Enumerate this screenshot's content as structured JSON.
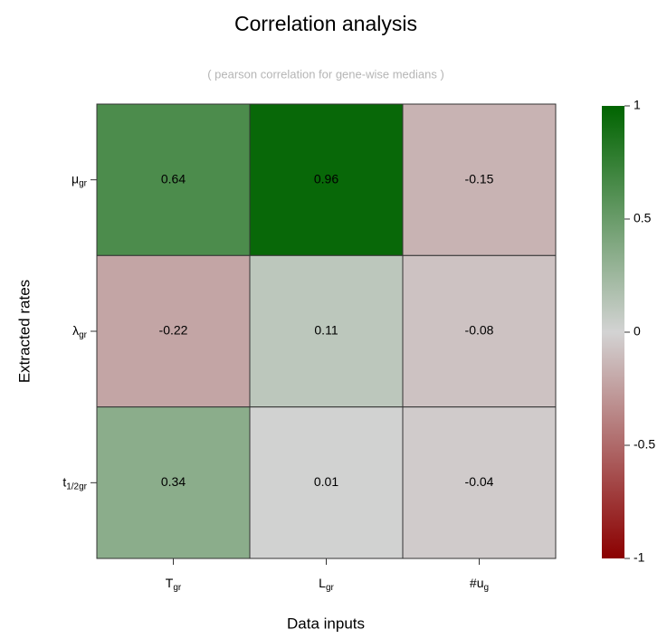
{
  "chart_data": {
    "type": "heatmap",
    "title": "Correlation analysis",
    "subtitle": "( pearson correlation for gene-wise medians )",
    "xlabel": "Data inputs",
    "ylabel": "Extracted rates",
    "x_categories": [
      {
        "text": "T",
        "sub": "gr"
      },
      {
        "text": "L",
        "sub": "gr"
      },
      {
        "text": "#u",
        "sub": "g"
      }
    ],
    "y_categories": [
      {
        "text": "μ",
        "sub": "gr"
      },
      {
        "text": "λ",
        "sub": "gr"
      },
      {
        "text": "t",
        "sub": "1/2gr"
      }
    ],
    "values": [
      [
        0.64,
        0.96,
        -0.15
      ],
      [
        -0.22,
        0.11,
        -0.08
      ],
      [
        0.34,
        0.01,
        -0.04
      ]
    ],
    "colormap": [
      "#8b0000",
      "#d3d3d3",
      "#006400"
    ],
    "clim": [
      -1,
      1
    ],
    "cticks": [
      -1,
      -0.5,
      0,
      0.5,
      1
    ]
  }
}
